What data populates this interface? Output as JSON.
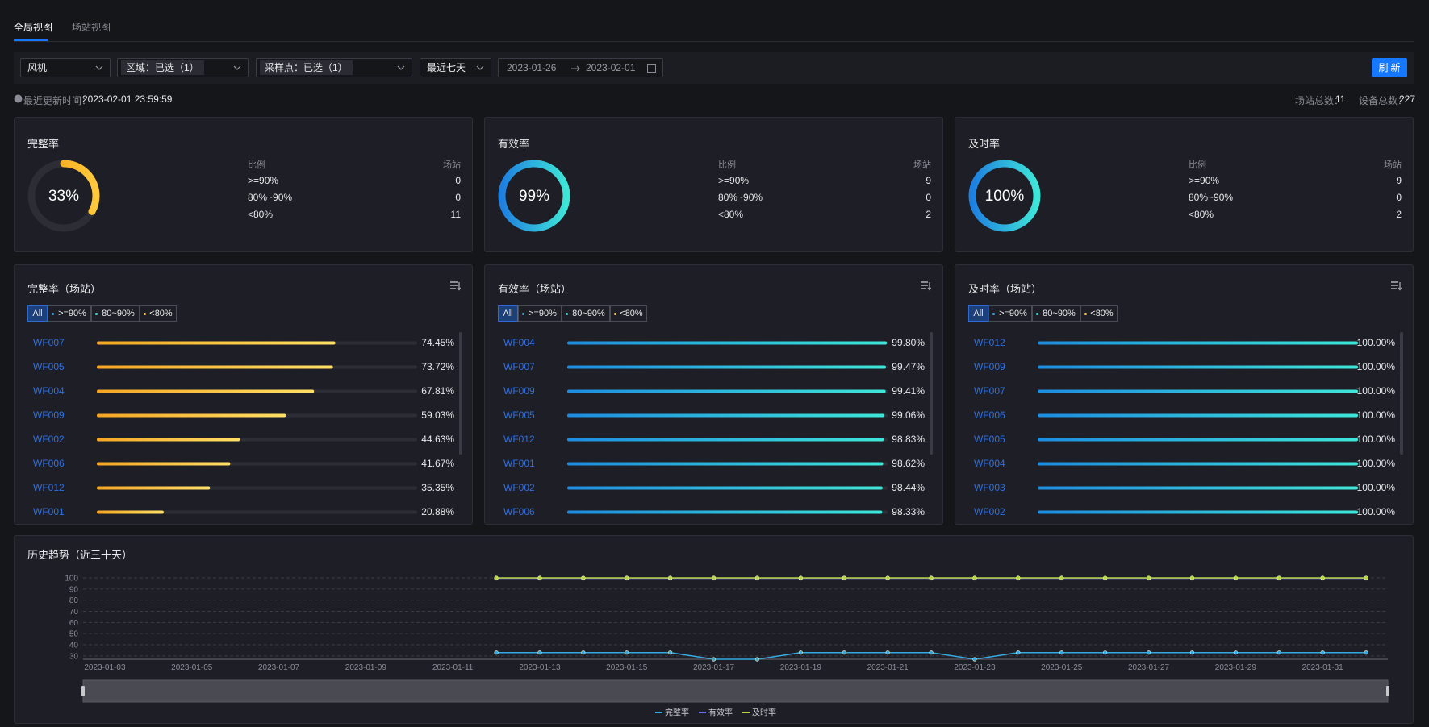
{
  "tabs": [
    "全局视图",
    "场站视图"
  ],
  "filters": {
    "device_type": "风机",
    "region": "区域：已选（1）",
    "sample_point": "采样点：已选（1）",
    "period": "最近七天",
    "date_start": "2023-01-26",
    "date_end": "2023-02-01",
    "refresh": "刷新"
  },
  "update": {
    "label": "最近更新时间：",
    "time": "2023-02-01 23:59:59"
  },
  "totals": [
    {
      "label": "场站总数：",
      "value": 11
    },
    {
      "label": "设备总数：",
      "value": 227
    }
  ],
  "summary_cards": [
    {
      "title": "完整率",
      "value": 33,
      "value_label": "33%",
      "xlim": [
        0,
        100
      ],
      "colors": [
        "#f39c12",
        "#ffc93c"
      ],
      "columns": [
        "比例",
        "场站"
      ],
      "rows": [
        {
          "range": ">=90%",
          "count": 0
        },
        {
          "range": "80%~90%",
          "count": 0
        },
        {
          "range": "<80%",
          "count": 11
        }
      ]
    },
    {
      "title": "有效率",
      "value": 99,
      "value_label": "99%",
      "xlim": [
        0,
        100
      ],
      "colors": [
        "#1e7fe0",
        "#3ee6d8"
      ],
      "columns": [
        "比例",
        "场站"
      ],
      "rows": [
        {
          "range": ">=90%",
          "count": 9
        },
        {
          "range": "80%~90%",
          "count": 0
        },
        {
          "range": "<80%",
          "count": 2
        }
      ]
    },
    {
      "title": "及时率",
      "value": 100,
      "value_label": "100%",
      "xlim": [
        0,
        100
      ],
      "colors": [
        "#1e7fe0",
        "#3ee6d8"
      ],
      "columns": [
        "比例",
        "场站"
      ],
      "rows": [
        {
          "range": ">=90%",
          "count": 9
        },
        {
          "range": "80%~90%",
          "count": 0
        },
        {
          "range": "<80%",
          "count": 2
        }
      ]
    }
  ],
  "station_panels": [
    {
      "title": "完整率（场站）",
      "filters": [
        "All",
        ">=90%",
        "80~90%",
        "<80%"
      ],
      "xlim": [
        0,
        100
      ],
      "colors": [
        "#f5a623",
        "#ffe066"
      ],
      "stations": [
        {
          "name": "WF007",
          "value": 74.45,
          "value_label": "74.45%"
        },
        {
          "name": "WF005",
          "value": 73.72,
          "value_label": "73.72%"
        },
        {
          "name": "WF004",
          "value": 67.81,
          "value_label": "67.81%"
        },
        {
          "name": "WF009",
          "value": 59.03,
          "value_label": "59.03%"
        },
        {
          "name": "WF002",
          "value": 44.63,
          "value_label": "44.63%"
        },
        {
          "name": "WF006",
          "value": 41.67,
          "value_label": "41.67%"
        },
        {
          "name": "WF012",
          "value": 35.35,
          "value_label": "35.35%"
        },
        {
          "name": "WF001",
          "value": 20.88,
          "value_label": "20.88%"
        }
      ]
    },
    {
      "title": "有效率（场站）",
      "filters": [
        "All",
        ">=90%",
        "80~90%",
        "<80%"
      ],
      "xlim": [
        0,
        100
      ],
      "colors": [
        "#1d8ce0",
        "#3ee6d8"
      ],
      "stations": [
        {
          "name": "WF004",
          "value": 99.8,
          "value_label": "99.80%"
        },
        {
          "name": "WF007",
          "value": 99.47,
          "value_label": "99.47%"
        },
        {
          "name": "WF009",
          "value": 99.41,
          "value_label": "99.41%"
        },
        {
          "name": "WF005",
          "value": 99.06,
          "value_label": "99.06%"
        },
        {
          "name": "WF012",
          "value": 98.83,
          "value_label": "98.83%"
        },
        {
          "name": "WF001",
          "value": 98.62,
          "value_label": "98.62%"
        },
        {
          "name": "WF002",
          "value": 98.44,
          "value_label": "98.44%"
        },
        {
          "name": "WF006",
          "value": 98.33,
          "value_label": "98.33%"
        }
      ]
    },
    {
      "title": "及时率（场站）",
      "filters": [
        "All",
        ">=90%",
        "80~90%",
        "<80%"
      ],
      "xlim": [
        0,
        100
      ],
      "colors": [
        "#1d8ce0",
        "#3ee6d8"
      ],
      "stations": [
        {
          "name": "WF012",
          "value": 100,
          "value_label": "100.00%"
        },
        {
          "name": "WF009",
          "value": 100,
          "value_label": "100.00%"
        },
        {
          "name": "WF007",
          "value": 100,
          "value_label": "100.00%"
        },
        {
          "name": "WF006",
          "value": 100,
          "value_label": "100.00%"
        },
        {
          "name": "WF005",
          "value": 100,
          "value_label": "100.00%"
        },
        {
          "name": "WF004",
          "value": 100,
          "value_label": "100.00%"
        },
        {
          "name": "WF003",
          "value": 100,
          "value_label": "100.00%"
        },
        {
          "name": "WF002",
          "value": 100,
          "value_label": "100.00%"
        }
      ]
    }
  ],
  "chart_data": {
    "type": "line",
    "title": "历史趋势（近三十天）",
    "categories": [
      "2023-01-03",
      null,
      "2023-01-05",
      null,
      "2023-01-07",
      null,
      "2023-01-09",
      null,
      "2023-01-11",
      null,
      "2023-01-13",
      null,
      "2023-01-15",
      null,
      "2023-01-17",
      null,
      "2023-01-19",
      null,
      "2023-01-21",
      null,
      "2023-01-23",
      null,
      "2023-01-25",
      null,
      "2023-01-27",
      null,
      "2023-01-29",
      null,
      "2023-01-31",
      null
    ],
    "ylim": [
      27,
      100
    ],
    "yticks": [
      30,
      40,
      50,
      60,
      70,
      80,
      90,
      100
    ],
    "grid": true,
    "legend": "bottom",
    "series": [
      {
        "name": "完整率",
        "color": "#36a9e1",
        "values": [
          null,
          null,
          null,
          null,
          null,
          null,
          null,
          null,
          null,
          33,
          33,
          33,
          33,
          33,
          27,
          27,
          33,
          33,
          33,
          33,
          27,
          33,
          33,
          33,
          33,
          33,
          33,
          33,
          33,
          33
        ]
      },
      {
        "name": "有效率",
        "color": "#6f6cf2",
        "values": [
          null,
          null,
          null,
          null,
          null,
          null,
          null,
          null,
          null,
          99.6,
          99.6,
          99.6,
          99.6,
          99.6,
          99.6,
          99.6,
          99.6,
          99.6,
          99.6,
          99.6,
          99.6,
          99.6,
          99.6,
          99.6,
          99.6,
          99.6,
          99.6,
          99.6,
          99.6,
          99.6
        ]
      },
      {
        "name": "及时率",
        "color": "#b6d541",
        "values": [
          null,
          null,
          null,
          null,
          null,
          null,
          null,
          null,
          null,
          100,
          100,
          100,
          100,
          100,
          100,
          100,
          100,
          100,
          100,
          100,
          100,
          100,
          100,
          100,
          100,
          100,
          100,
          100,
          100,
          100
        ]
      }
    ]
  }
}
